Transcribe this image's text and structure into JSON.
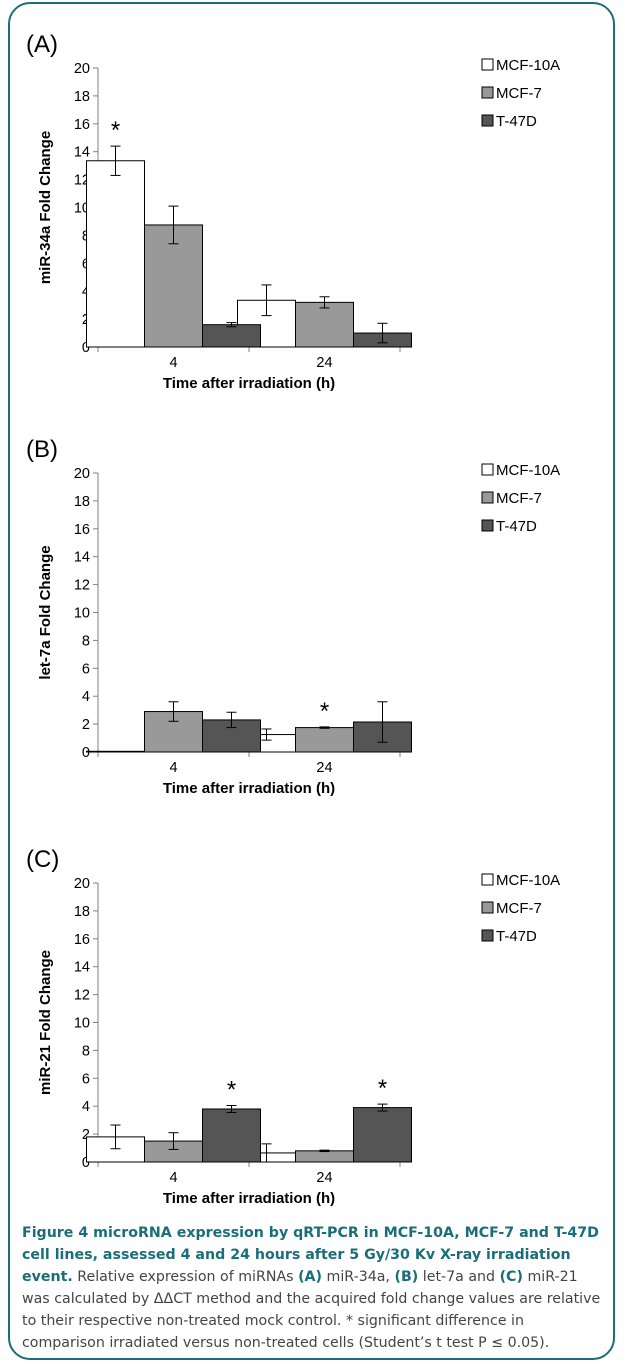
{
  "chart_data": [
    {
      "type": "bar",
      "panel_label": "(A)",
      "categories": [
        "4",
        "24"
      ],
      "series": [
        {
          "name": "MCF-10A",
          "values": [
            13.35,
            3.35
          ],
          "errors": [
            1.05,
            1.1
          ],
          "color": "#ffffff"
        },
        {
          "name": "MCF-7",
          "values": [
            8.75,
            3.2
          ],
          "errors": [
            1.35,
            0.4
          ],
          "color": "#999999"
        },
        {
          "name": "T-47D",
          "values": [
            1.6,
            1.0
          ],
          "errors": [
            0.15,
            0.7
          ],
          "color": "#555555"
        }
      ],
      "ylabel": "miR-34a Fold Change",
      "xlabel": "Time after irradiation (h)",
      "ylim": [
        0,
        20
      ],
      "yticks": [
        "0",
        "2",
        "4",
        "6",
        "8",
        "10",
        "12",
        "14",
        "16",
        "18",
        "20"
      ],
      "significance": [
        {
          "category": "4",
          "series": "MCF-10A",
          "mark": "*"
        }
      ],
      "legend_position": "top-right",
      "grid": false
    },
    {
      "type": "bar",
      "panel_label": "(B)",
      "categories": [
        "4",
        "24"
      ],
      "series": [
        {
          "name": "MCF-10A",
          "values": [
            0.05,
            1.25
          ],
          "errors": [
            0.0,
            0.4
          ],
          "color": "#ffffff"
        },
        {
          "name": "MCF-7",
          "values": [
            2.9,
            1.75
          ],
          "errors": [
            0.7,
            0.05
          ],
          "color": "#999999"
        },
        {
          "name": "T-47D",
          "values": [
            2.3,
            2.15
          ],
          "errors": [
            0.55,
            1.45
          ],
          "color": "#555555"
        }
      ],
      "ylabel": "let-7a Fold Change",
      "xlabel": "Time after irradiation (h)",
      "ylim": [
        0,
        20
      ],
      "yticks": [
        "0",
        "2",
        "4",
        "6",
        "8",
        "10",
        "12",
        "14",
        "16",
        "18",
        "20"
      ],
      "significance": [
        {
          "category": "24",
          "series": "MCF-7",
          "mark": "*"
        }
      ],
      "legend_position": "top-right",
      "grid": false
    },
    {
      "type": "bar",
      "panel_label": "(C)",
      "categories": [
        "4",
        "24"
      ],
      "series": [
        {
          "name": "MCF-10A",
          "values": [
            1.8,
            0.65
          ],
          "errors": [
            0.85,
            0.65
          ],
          "color": "#ffffff"
        },
        {
          "name": "MCF-7",
          "values": [
            1.5,
            0.8
          ],
          "errors": [
            0.6,
            0.05
          ],
          "color": "#999999"
        },
        {
          "name": "T-47D",
          "values": [
            3.8,
            3.9
          ],
          "errors": [
            0.25,
            0.25
          ],
          "color": "#555555"
        }
      ],
      "ylabel": "miR-21 Fold Change",
      "xlabel": "Time after irradiation (h)",
      "ylim": [
        0,
        20
      ],
      "yticks": [
        "0",
        "2",
        "4",
        "6",
        "8",
        "10",
        "12",
        "14",
        "16",
        "18",
        "20"
      ],
      "significance": [
        {
          "category": "4",
          "series": "T-47D",
          "mark": "*"
        },
        {
          "category": "24",
          "series": "T-47D",
          "mark": "*"
        }
      ],
      "legend_position": "top-right",
      "grid": false
    }
  ],
  "caption": {
    "title": "Figure 4 microRNA expression by qRT-PCR in MCF-10A, MCF-7 and T-47D cell lines, assessed 4 and 24 hours after 5 Gy/30 Kv X-ray irradiation event.",
    "t1": " Relative expression of miRNAs ",
    "a": "(A)",
    "t2": " miR-34a, ",
    "b": "(B)",
    "t3": " let-7a and ",
    "c": "(C)",
    "t4": " miR-21 was calculated by ΔΔCT method and the acquired fold change values are relative to their respective non-treated mock control. * significant difference in comparison irradiated versus non-treated cells (Student’s t test P ≤ 0.05)."
  },
  "colors": {
    "frame": "#1a6e7a",
    "axis": "#808080",
    "caption_title": "#1a6e7a"
  }
}
